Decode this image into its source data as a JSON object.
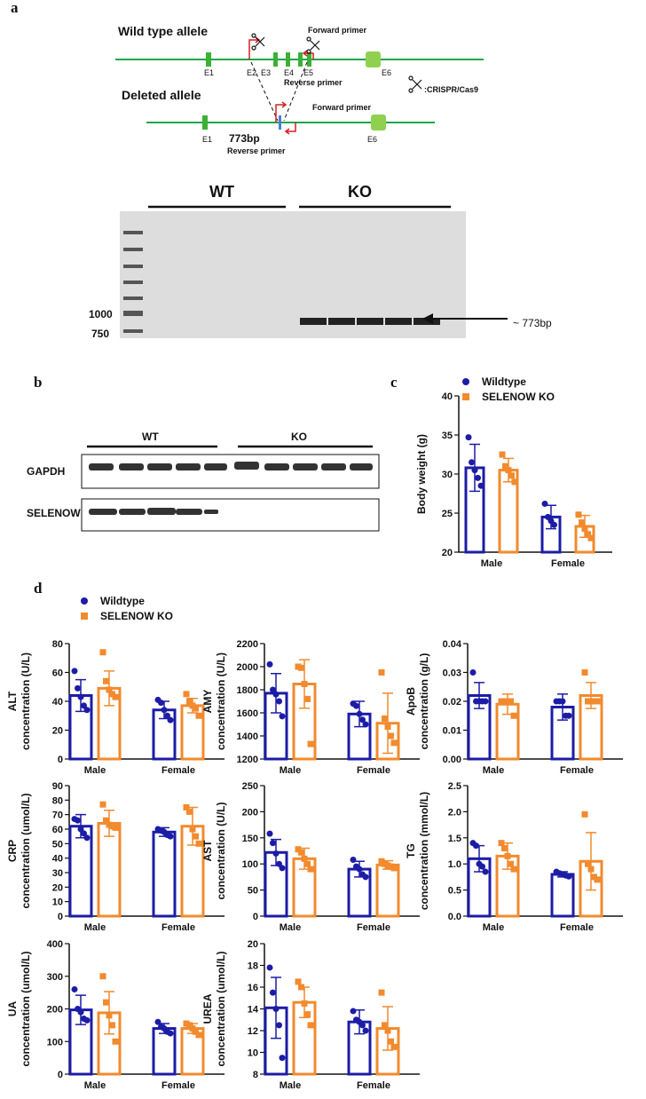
{
  "panel_a": {
    "label": "a",
    "wild_type": "Wild type allele",
    "deleted": "Deleted allele",
    "wt_exons": [
      "E1",
      "E2",
      "E3",
      "E4",
      "E5",
      "E6"
    ],
    "del_exons": [
      "E1",
      "E6"
    ],
    "forward_primer": [
      "Forward primer",
      "Forward primer"
    ],
    "reverse_primer": [
      "Reverse primer",
      "Reverse primer"
    ],
    "product": "773bp",
    "crispr": ":CRISPR/Cas9",
    "gel_groups": [
      "WT",
      "KO"
    ],
    "ladder": [
      "1000",
      "750"
    ],
    "band": "~ 773bp"
  },
  "panel_b": {
    "label": "b",
    "groups": [
      "WT",
      "KO"
    ],
    "rows": [
      "GAPDH",
      "SELENOW"
    ]
  },
  "panel_c": {
    "label": "c"
  },
  "panel_d": {
    "label": "d"
  },
  "chart_data": [
    {
      "type": "bar",
      "ylabel": [
        "Body weight (g)"
      ],
      "categories": [
        "Male",
        "Female"
      ],
      "ylim": [
        20,
        40
      ],
      "yticks": [
        20,
        25,
        30,
        35,
        40
      ],
      "series": [
        {
          "name": "Wildtype",
          "color": "#1c1ca6",
          "values": [
            30.8,
            24.5
          ],
          "errors": [
            3,
            1.5
          ],
          "points": [
            [
              34.7,
              31.5,
              30.5,
              29.5,
              28.5
            ],
            [
              26.2,
              24.5,
              24,
              23.5
            ]
          ]
        },
        {
          "name": "SELENOW KO",
          "color": "#f28a2e",
          "values": [
            30.5,
            23.3
          ],
          "errors": [
            1.5,
            1.4
          ],
          "points": [
            [
              32.5,
              31,
              30.5,
              29.8,
              29
            ],
            [
              24.8,
              23.8,
              23,
              22.3,
              21.8
            ]
          ]
        }
      ]
    },
    {
      "type": "bar",
      "ylabel": [
        "ALT",
        "concentration (U/L)"
      ],
      "categories": [
        "Male",
        "Female"
      ],
      "ylim": [
        0,
        80
      ],
      "yticks": [
        0,
        20,
        40,
        60,
        80
      ],
      "series": [
        {
          "name": "Wildtype",
          "color": "#1c1ca6",
          "values": [
            44,
            34
          ],
          "errors": [
            11,
            6
          ],
          "points": [
            [
              61,
              49,
              43,
              37,
              34
            ],
            [
              41,
              39,
              34,
              30,
              27
            ]
          ]
        },
        {
          "name": "SELENOW KO",
          "color": "#f28a2e",
          "values": [
            49,
            37
          ],
          "errors": [
            12,
            5
          ],
          "points": [
            [
              74,
              54,
              48,
              45,
              43
            ],
            [
              45,
              40,
              37,
              35,
              30
            ]
          ]
        }
      ]
    },
    {
      "type": "bar",
      "ylabel": [
        "AMY",
        "concentration (U/L)"
      ],
      "categories": [
        "Male",
        "Female"
      ],
      "ylim": [
        1200,
        2200
      ],
      "yticks": [
        1200,
        1400,
        1600,
        1800,
        2000,
        2200
      ],
      "series": [
        {
          "color": "#1c1ca6",
          "values": [
            1770,
            1590
          ],
          "errors": [
            170,
            110
          ],
          "points": [
            [
              2020,
              1800,
              1760,
              1700,
              1570
            ],
            [
              1680,
              1660,
              1590,
              1540,
              1500
            ]
          ]
        },
        {
          "color": "#f28a2e",
          "values": [
            1850,
            1510
          ],
          "errors": [
            210,
            260
          ],
          "points": [
            [
              2000,
              1990,
              1850,
              1720,
              1330
            ],
            [
              1950,
              1550,
              1480,
              1400,
              1340
            ]
          ]
        }
      ]
    },
    {
      "type": "bar",
      "ylabel": [
        "ApoB",
        "concentration (g/L)"
      ],
      "categories": [
        "Male",
        "Female"
      ],
      "ylim": [
        0,
        0.04
      ],
      "yticks": [
        {
          "value": 0,
          "label": "0.00"
        },
        0.01,
        0.02,
        0.03,
        0.04
      ],
      "series": [
        {
          "color": "#1c1ca6",
          "values": [
            0.022,
            0.018
          ],
          "errors": [
            0.0045,
            0.0045
          ],
          "points": [
            [
              0.03,
              0.02,
              0.02,
              0.02,
              0.02
            ],
            [
              0.02,
              0.02,
              0.02,
              0.015,
              0.015
            ]
          ]
        },
        {
          "color": "#f28a2e",
          "values": [
            0.019,
            0.022
          ],
          "errors": [
            0.0035,
            0.0045
          ],
          "points": [
            [
              0.02,
              0.02,
              0.02,
              0.02,
              0.015
            ],
            [
              0.03,
              0.02,
              0.02,
              0.02,
              0.02
            ]
          ]
        }
      ]
    },
    {
      "type": "bar",
      "ylabel": [
        "CRP",
        "concentration (umol/L)"
      ],
      "categories": [
        "Male",
        "Female"
      ],
      "ylim": [
        0,
        90
      ],
      "yticks": [
        0,
        10,
        20,
        30,
        40,
        50,
        60,
        70,
        80,
        90
      ],
      "series": [
        {
          "color": "#1c1ca6",
          "values": [
            62,
            58
          ],
          "errors": [
            8,
            3
          ],
          "points": [
            [
              67,
              66,
              60,
              57,
              54
            ],
            [
              60,
              59,
              58,
              56,
              55
            ]
          ]
        },
        {
          "color": "#f28a2e",
          "values": [
            64,
            62
          ],
          "errors": [
            9,
            13
          ],
          "points": [
            [
              77,
              66,
              63,
              62,
              61
            ],
            [
              75,
              72,
              60,
              55,
              50
            ]
          ]
        }
      ]
    },
    {
      "type": "bar",
      "ylabel": [
        "AST",
        "concentration (U/L)"
      ],
      "categories": [
        "Male",
        "Female"
      ],
      "ylim": [
        0,
        250
      ],
      "yticks": [
        0,
        50,
        100,
        150,
        200,
        250
      ],
      "series": [
        {
          "color": "#1c1ca6",
          "values": [
            122,
            90
          ],
          "errors": [
            25,
            15
          ],
          "points": [
            [
              158,
              140,
              120,
              100,
              92
            ],
            [
              108,
              95,
              90,
              80,
              75
            ]
          ]
        },
        {
          "color": "#f28a2e",
          "values": [
            110,
            98
          ],
          "errors": [
            20,
            8
          ],
          "points": [
            [
              128,
              122,
              110,
              100,
              90
            ],
            [
              105,
              100,
              97,
              95,
              92
            ]
          ]
        }
      ]
    },
    {
      "type": "bar",
      "ylabel": [
        "TG",
        "concentration (mmol/L)"
      ],
      "categories": [
        "Male",
        "Female"
      ],
      "ylim": [
        0,
        2.5
      ],
      "yticks": [
        {
          "value": 0,
          "label": "0.0"
        },
        0.5,
        {
          "value": 1,
          "label": "1.0"
        },
        1.5,
        {
          "value": 2,
          "label": "2.0"
        },
        2.5
      ],
      "series": [
        {
          "color": "#1c1ca6",
          "values": [
            1.1,
            0.8
          ],
          "errors": [
            0.25,
            0.05
          ],
          "points": [
            [
              1.4,
              1.35,
              1.0,
              0.95,
              0.85
            ],
            [
              0.85,
              0.82,
              0.8,
              0.78,
              0.76
            ]
          ]
        },
        {
          "color": "#f28a2e",
          "values": [
            1.15,
            1.05
          ],
          "errors": [
            0.25,
            0.55
          ],
          "points": [
            [
              1.4,
              1.3,
              1.15,
              1.0,
              0.9
            ],
            [
              1.95,
              1.0,
              0.9,
              0.75,
              0.7
            ]
          ]
        }
      ]
    },
    {
      "type": "bar",
      "ylabel": [
        "UA",
        "concentration (umol/L)"
      ],
      "categories": [
        "Male",
        "Female"
      ],
      "ylim": [
        0,
        400
      ],
      "yticks": [
        0,
        100,
        200,
        300,
        400
      ],
      "series": [
        {
          "color": "#1c1ca6",
          "values": [
            197,
            140
          ],
          "errors": [
            45,
            15
          ],
          "points": [
            [
              260,
              200,
              190,
              170,
              165
            ],
            [
              160,
              145,
              140,
              130,
              125
            ]
          ]
        },
        {
          "color": "#f28a2e",
          "values": [
            188,
            140
          ],
          "errors": [
            65,
            15
          ],
          "points": [
            [
              300,
              220,
              180,
              150,
              100
            ],
            [
              155,
              150,
              140,
              130,
              120
            ]
          ]
        }
      ]
    },
    {
      "type": "bar",
      "ylabel": [
        "UREA",
        "concentration (umol/L)"
      ],
      "categories": [
        "Male",
        "Female"
      ],
      "ylim": [
        8,
        20
      ],
      "yticks": [
        8,
        10,
        12,
        14,
        16,
        18,
        20
      ],
      "series": [
        {
          "color": "#1c1ca6",
          "values": [
            14.1,
            12.8
          ],
          "errors": [
            2.8,
            1.1
          ],
          "points": [
            [
              17.8,
              15.5,
              14,
              12.5,
              9.5
            ],
            [
              13.8,
              13,
              12.8,
              12.5,
              12
            ]
          ]
        },
        {
          "color": "#f28a2e",
          "values": [
            14.6,
            12.2
          ],
          "errors": [
            1.4,
            2
          ],
          "points": [
            [
              16.5,
              16,
              14.5,
              13.5,
              12.5
            ],
            [
              15.5,
              12.5,
              12,
              11,
              10.5
            ]
          ]
        }
      ]
    }
  ]
}
